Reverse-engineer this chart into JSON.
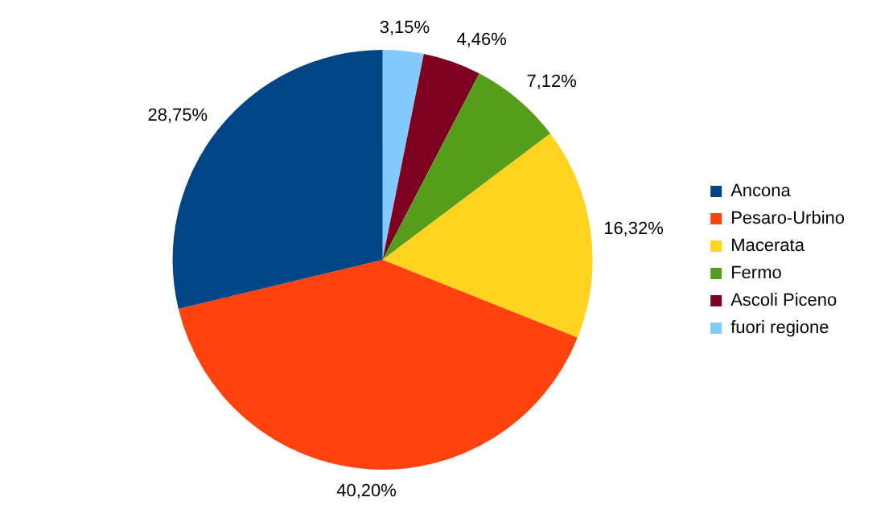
{
  "chart_data": {
    "type": "pie",
    "categories": [
      "Ancona",
      "Pesaro-Urbino",
      "Macerata",
      "Fermo",
      "Ascoli Piceno",
      "fuori regione"
    ],
    "values": [
      28.75,
      40.2,
      16.32,
      7.12,
      4.46,
      3.15
    ],
    "value_labels": [
      "28,75%",
      "40,20%",
      "16,32%",
      "7,12%",
      "4,46%",
      "3,15%"
    ],
    "colors": [
      "#004586",
      "#ff420e",
      "#ffd320",
      "#579d1c",
      "#7e0021",
      "#83caff"
    ],
    "legend": "right"
  }
}
